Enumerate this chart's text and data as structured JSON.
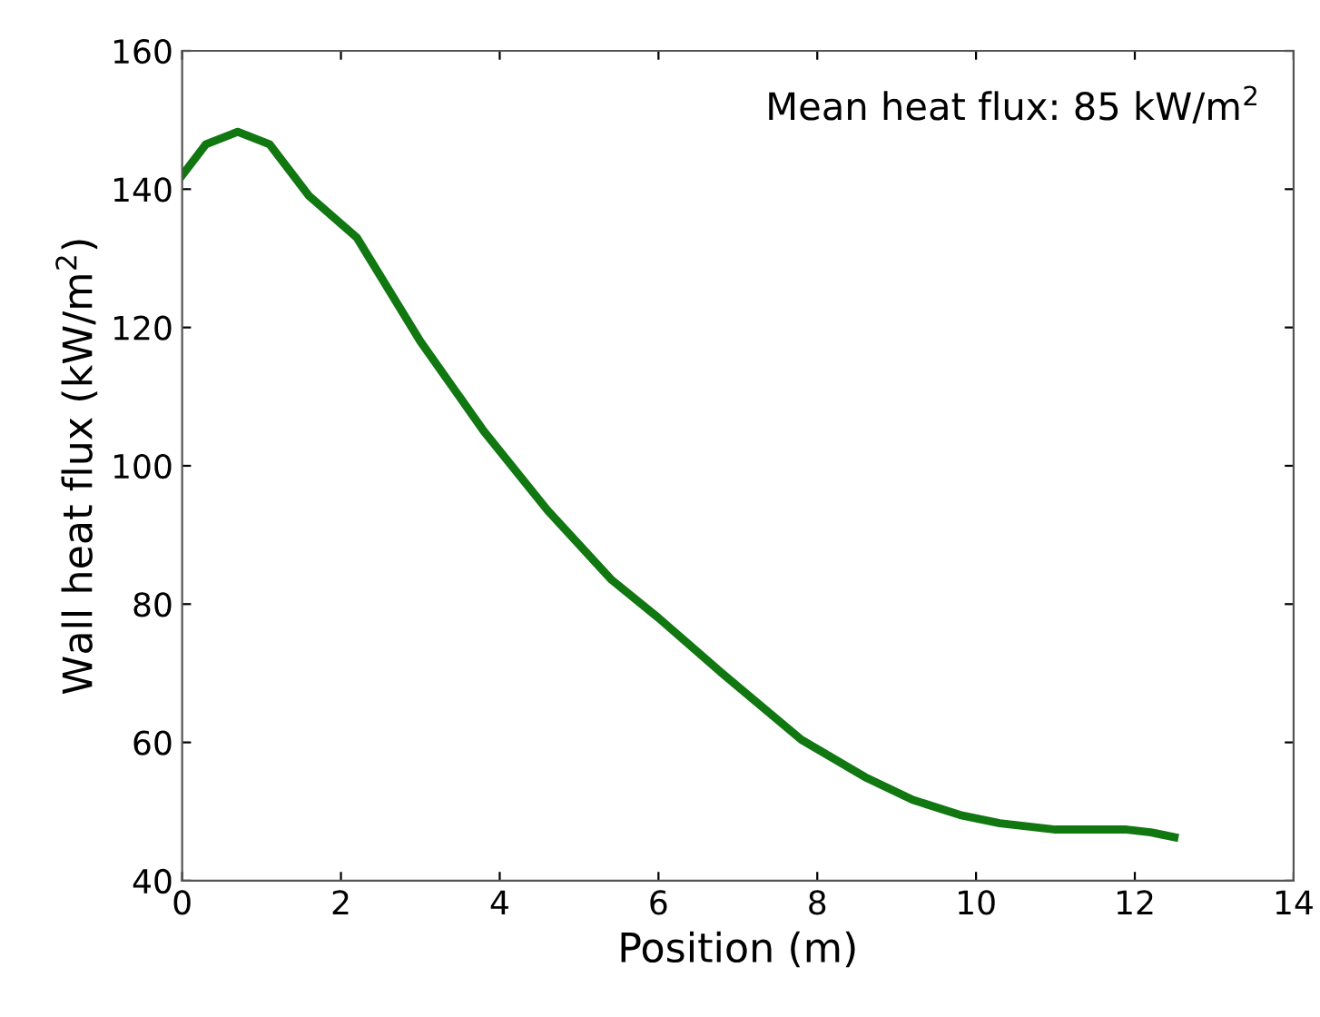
{
  "chart_data": {
    "type": "line",
    "xlabel": "Position (m)",
    "ylabel": "Wall heat flux (kW/m$^{2}$)",
    "annotations": [
      "Mean heat flux: 85 kW/m$^{2}$"
    ],
    "series": [
      {
        "color": "#117711",
        "x": [
          0,
          0.3,
          0.7,
          1.1,
          1.6,
          2.2,
          3.0,
          3.8,
          4.6,
          5.4,
          6.0,
          6.8,
          7.8,
          8.6,
          9.2,
          9.8,
          10.3,
          11.0,
          11.9,
          12.2,
          12.5
        ],
        "values": [
          142,
          146.5,
          148.3,
          146.5,
          139,
          133,
          118,
          105,
          93.6,
          83.6,
          78,
          70,
          60.4,
          55,
          51.7,
          49.5,
          48.3,
          47.4,
          47.4,
          47,
          46.3
        ]
      }
    ],
    "xlim": [
      0,
      14
    ],
    "ylim": [
      40,
      160
    ],
    "xticks": [
      0,
      2,
      4,
      6,
      8,
      10,
      12,
      14
    ],
    "yticks": [
      40,
      60,
      80,
      100,
      120,
      140,
      160
    ],
    "grid": false,
    "marker": "none",
    "line_style": "solid"
  }
}
